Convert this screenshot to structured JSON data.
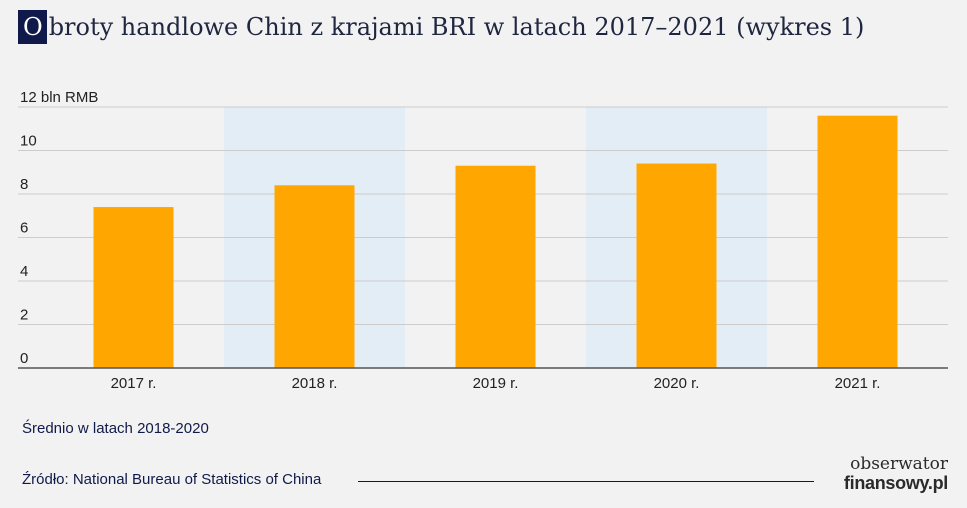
{
  "header": {
    "title_initial": "O",
    "title_rest": "broty handlowe Chin z krajami BRI w latach 2017–2021 (wykres 1)"
  },
  "chart_data": {
    "type": "bar",
    "unit_label": "bln RMB",
    "categories": [
      "2017 r.",
      "2018 r.",
      "2019 r.",
      "2020 r.",
      "2021 r."
    ],
    "values": [
      7.4,
      8.4,
      9.3,
      9.4,
      11.6
    ],
    "ylim": [
      0,
      12
    ],
    "yticks": [
      0,
      2,
      4,
      6,
      8,
      10,
      12
    ],
    "highlighted_categories": [
      "2018 r.",
      "2019 r.",
      "2020 r."
    ],
    "grid": true,
    "colors": {
      "bar": "#ffa600",
      "highlight_band": "#e3edf6",
      "grid": "#cccccc",
      "axis": "#555555"
    }
  },
  "notes": {
    "average": "Średnio w latach 2018-2020",
    "source": "Źródło: National Bureau of Statistics of China"
  },
  "logo": {
    "line1": "obserwator",
    "line2": "finansowy.pl"
  }
}
